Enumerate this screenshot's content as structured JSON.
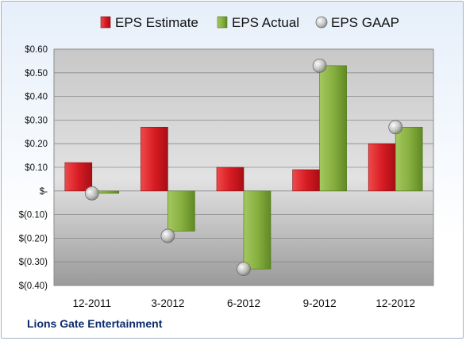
{
  "chart_data": {
    "type": "bar",
    "categories": [
      "12-2011",
      "3-2012",
      "6-2012",
      "9-2012",
      "12-2012"
    ],
    "series": [
      {
        "name": "EPS Estimate",
        "kind": "bar",
        "values": [
          0.12,
          0.27,
          0.1,
          0.09,
          0.2
        ]
      },
      {
        "name": "EPS Actual",
        "kind": "bar",
        "values": [
          -0.01,
          -0.17,
          -0.33,
          0.53,
          0.27
        ]
      },
      {
        "name": "EPS GAAP",
        "kind": "marker",
        "values": [
          -0.01,
          -0.19,
          -0.33,
          0.53,
          0.27
        ]
      }
    ],
    "ylim": [
      -0.4,
      0.6
    ],
    "yticks": [
      0.6,
      0.5,
      0.4,
      0.3,
      0.2,
      0.1,
      0,
      -0.1,
      -0.2,
      -0.3,
      -0.4
    ],
    "ytick_labels": [
      "$0.60",
      "$0.50",
      "$0.40",
      "$0.30",
      "$0.20",
      "$0.10",
      "$-",
      "$(0.10)",
      "$(0.20)",
      "$(0.30)",
      "$(0.40)"
    ],
    "legend_position": "top",
    "grid": true,
    "colors": {
      "estimate": "#d81c24",
      "actual": "#88b040",
      "gaap": "#b4b4b4"
    }
  },
  "footer": {
    "company": "Lions Gate Entertainment"
  }
}
